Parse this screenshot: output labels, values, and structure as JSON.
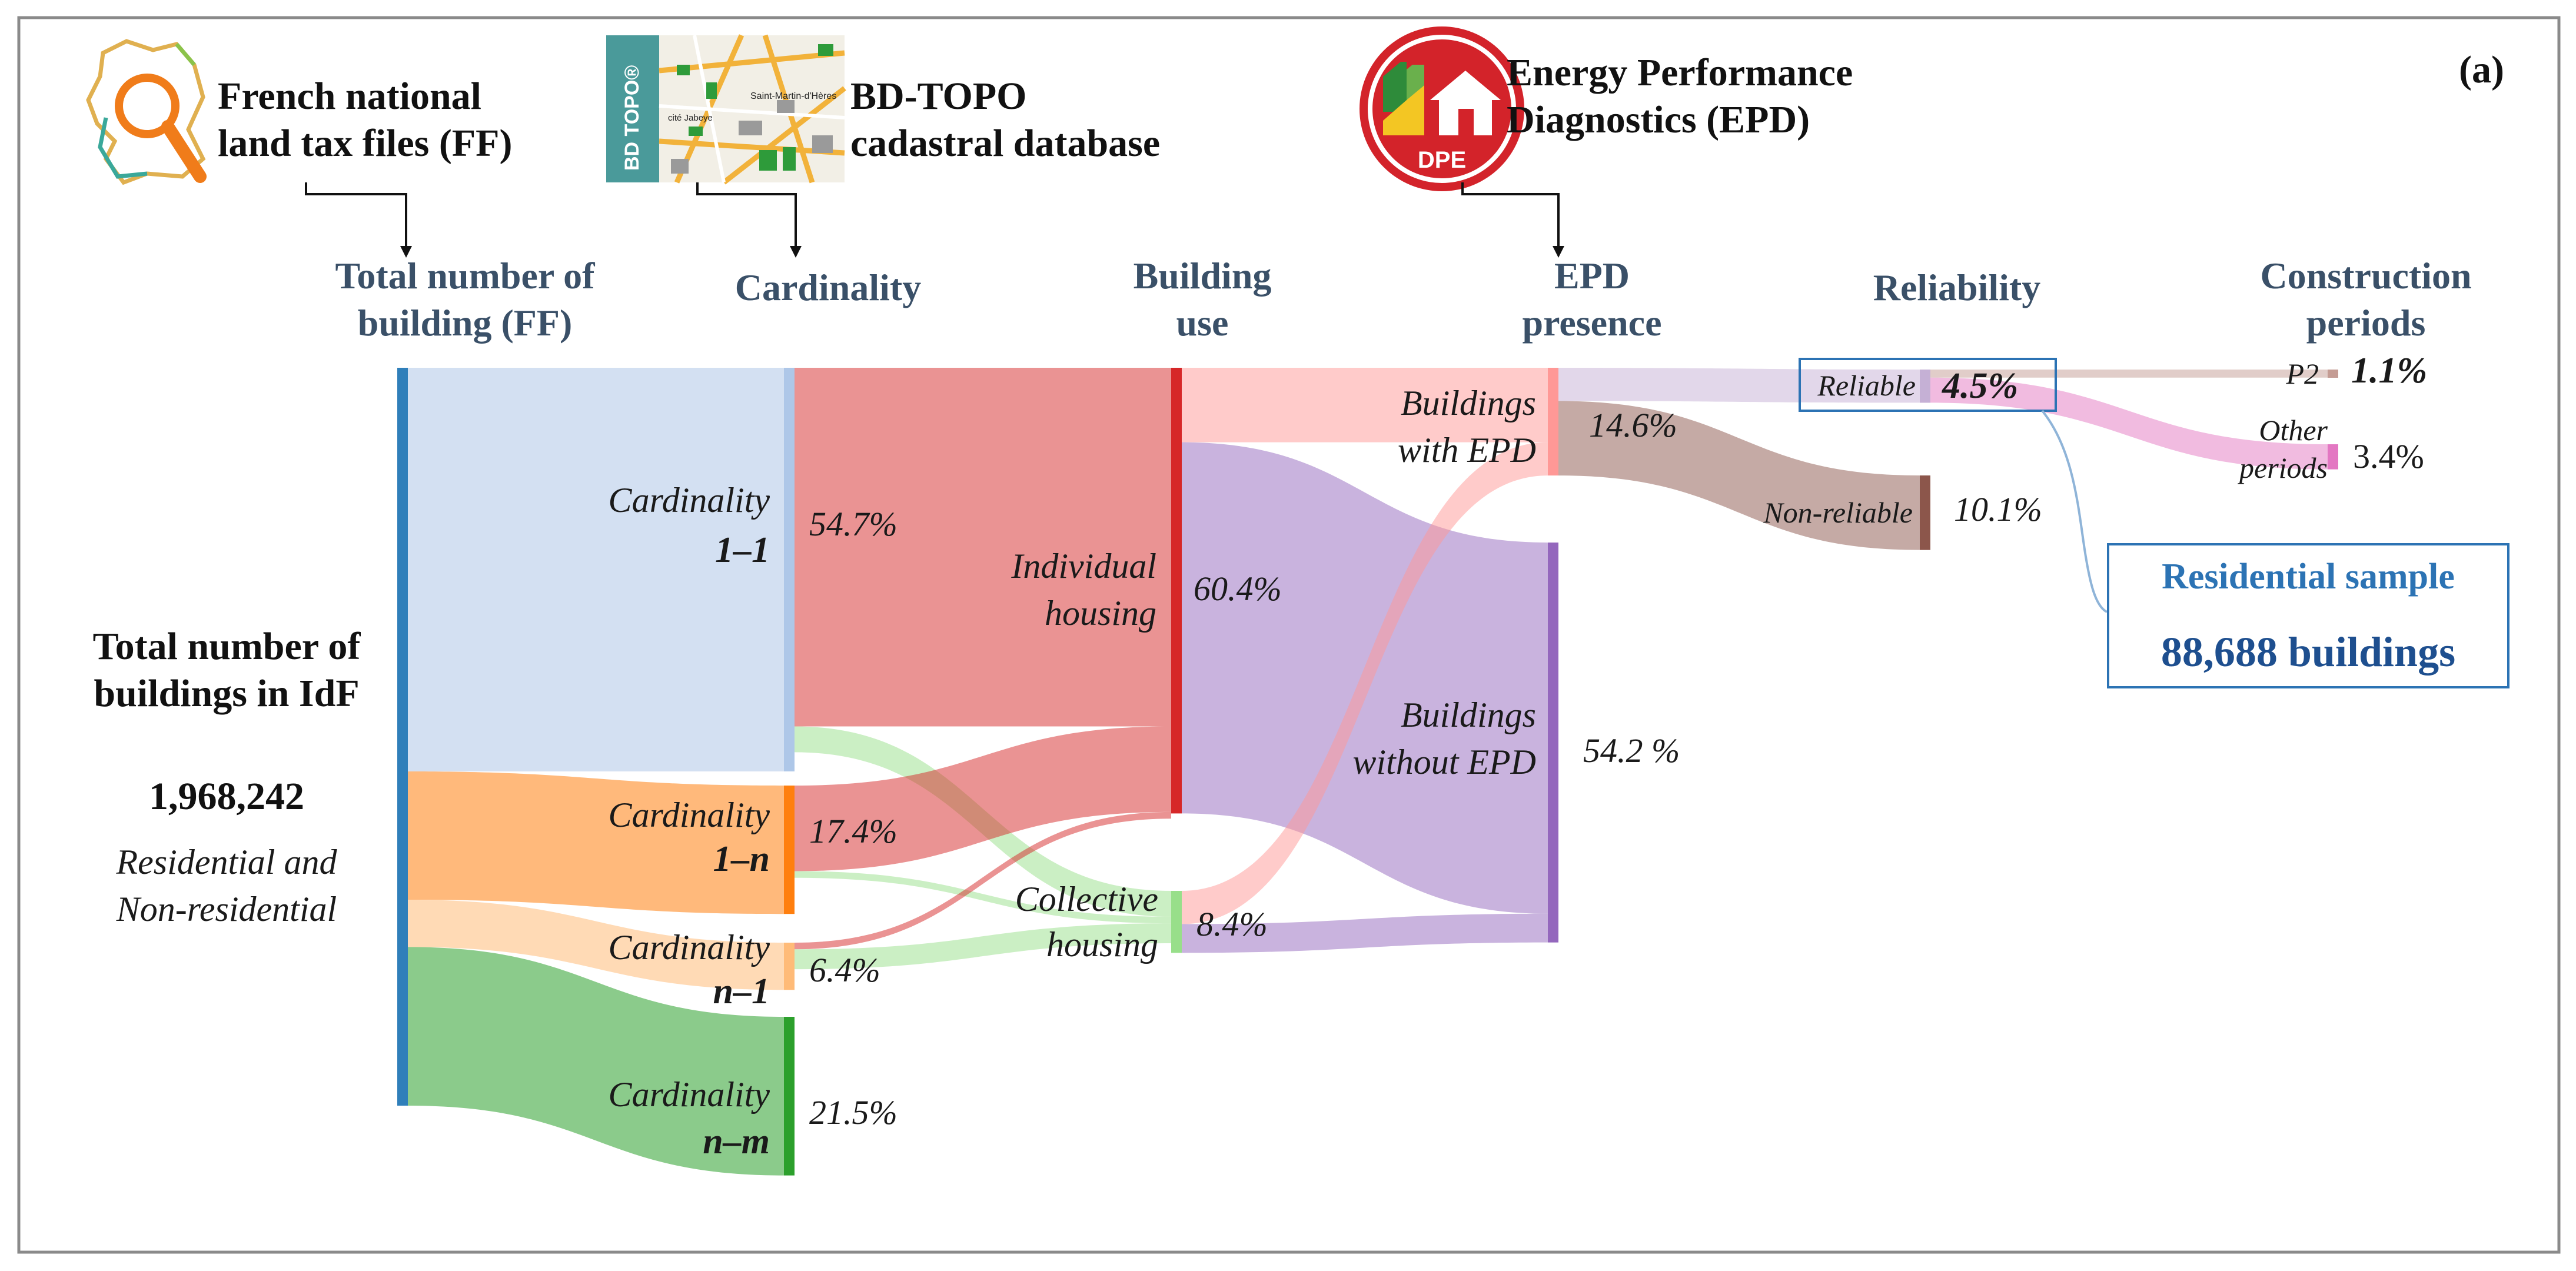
{
  "panel_label": "(a)",
  "sources": {
    "ff": {
      "line1": "French national",
      "line2": "land tax files (FF)",
      "icon": "france-magnifier-icon"
    },
    "bdtopo": {
      "line1": "BD-TOPO",
      "line2": "cadastral database",
      "badge": "BD TOPO®",
      "map_text1": "Saint-Martin-d'Hères",
      "map_text2": "cité Jabeye",
      "icon": "map-thumbnail-icon"
    },
    "epd": {
      "line1": "Energy Performance",
      "line2": "Diagnostics  (EPD)",
      "badge": "DPE",
      "icon": "dpe-house-icon"
    }
  },
  "headers": {
    "total": {
      "line1": "Total number of",
      "line2": "building (FF)"
    },
    "cardinality": {
      "line1": "Cardinality"
    },
    "use": {
      "line1": "Building",
      "line2": "use"
    },
    "epd": {
      "line1": "EPD",
      "line2": "presence"
    },
    "reliability": {
      "line1": "Reliability"
    },
    "periods": {
      "line1": "Construction",
      "line2": "periods"
    }
  },
  "left_panel": {
    "title1": "Total number of",
    "title2": "buildings in IdF",
    "count": "1,968,242",
    "sub1": "Residential and",
    "sub2": "Non-residential"
  },
  "node_labels": {
    "c11": {
      "line1": "Cardinality",
      "line2": "1–1",
      "pct": "54.7%"
    },
    "c1n": {
      "line1": "Cardinality",
      "line2": "1–n",
      "pct": "17.4%"
    },
    "cn1": {
      "line1": "Cardinality",
      "line2": "n–1",
      "pct": "6.4%"
    },
    "cnm": {
      "line1": "Cardinality",
      "line2": "n–m",
      "pct": "21.5%"
    },
    "ind": {
      "line1": "Individual",
      "line2": "housing",
      "pct": "60.4%"
    },
    "col": {
      "line1": "Collective",
      "line2": "housing",
      "pct": "8.4%"
    },
    "with": {
      "line1": "Buildings",
      "line2": "with EPD",
      "pct": "14.6%"
    },
    "without": {
      "line1": "Buildings",
      "line2": "without EPD",
      "pct": "54.2 %"
    },
    "reliable": {
      "line1": "Reliable",
      "pct": "4.5%"
    },
    "nonrel": {
      "line1": "Non-reliable",
      "pct": "10.1%"
    },
    "p2": {
      "line1": "P2",
      "pct": "1.1%"
    },
    "other": {
      "line1": "Other",
      "line2": "periods",
      "pct": "3.4%"
    }
  },
  "sample_box": {
    "title": "Residential sample",
    "count": "88,688 buildings"
  },
  "colors": {
    "total": "#2f7fba",
    "c11": "#aec7e8",
    "c1n": "#ff7f0e",
    "cn1": "#ffbb78",
    "cnm": "#2ca02c",
    "ind": "#d62728",
    "col": "#98df8a",
    "with": "#ff9896",
    "without": "#9467bd",
    "reliable": "#c5b0d5",
    "nonrel": "#8c564b",
    "p2": "#c49c94",
    "other": "#e377c2"
  },
  "chart_data": {
    "type": "sankey",
    "title": "",
    "unit": "% of 1,968,242 buildings",
    "nodes": [
      {
        "id": "total",
        "label": "Total number of buildings in IdF",
        "value": 100
      },
      {
        "id": "c11",
        "label": "Cardinality 1–1",
        "value": 54.7
      },
      {
        "id": "c1n",
        "label": "Cardinality 1–n",
        "value": 17.4
      },
      {
        "id": "cn1",
        "label": "Cardinality n–1",
        "value": 6.4
      },
      {
        "id": "cnm",
        "label": "Cardinality n–m",
        "value": 21.5
      },
      {
        "id": "ind",
        "label": "Individual housing",
        "value": 60.4
      },
      {
        "id": "col",
        "label": "Collective housing",
        "value": 8.4
      },
      {
        "id": "with",
        "label": "Buildings with EPD",
        "value": 14.6
      },
      {
        "id": "without",
        "label": "Buildings without EPD",
        "value": 54.2
      },
      {
        "id": "reliable",
        "label": "Reliable",
        "value": 4.5
      },
      {
        "id": "nonrel",
        "label": "Non-reliable",
        "value": 10.1
      },
      {
        "id": "p2",
        "label": "P2",
        "value": 1.1
      },
      {
        "id": "other",
        "label": "Other periods",
        "value": 3.4
      }
    ],
    "links": [
      {
        "source": "total",
        "target": "c11",
        "value": 54.7
      },
      {
        "source": "total",
        "target": "c1n",
        "value": 17.4
      },
      {
        "source": "total",
        "target": "cn1",
        "value": 6.4
      },
      {
        "source": "total",
        "target": "cnm",
        "value": 21.5
      },
      {
        "source": "c11",
        "target": "ind",
        "value": 48.6
      },
      {
        "source": "c11",
        "target": "col",
        "value": 3.5
      },
      {
        "source": "c1n",
        "target": "ind",
        "value": 11.6
      },
      {
        "source": "c1n",
        "target": "col",
        "value": 0.9
      },
      {
        "source": "cn1",
        "target": "ind",
        "value": 0.9
      },
      {
        "source": "cn1",
        "target": "col",
        "value": 2.7
      },
      {
        "source": "ind",
        "target": "with",
        "value": 10.1
      },
      {
        "source": "ind",
        "target": "without",
        "value": 50.3
      },
      {
        "source": "col",
        "target": "with",
        "value": 4.5
      },
      {
        "source": "col",
        "target": "without",
        "value": 3.9
      },
      {
        "source": "with",
        "target": "reliable",
        "value": 4.5
      },
      {
        "source": "with",
        "target": "nonrel",
        "value": 10.1
      },
      {
        "source": "reliable",
        "target": "p2",
        "value": 1.1
      },
      {
        "source": "reliable",
        "target": "other",
        "value": 3.4
      }
    ]
  }
}
